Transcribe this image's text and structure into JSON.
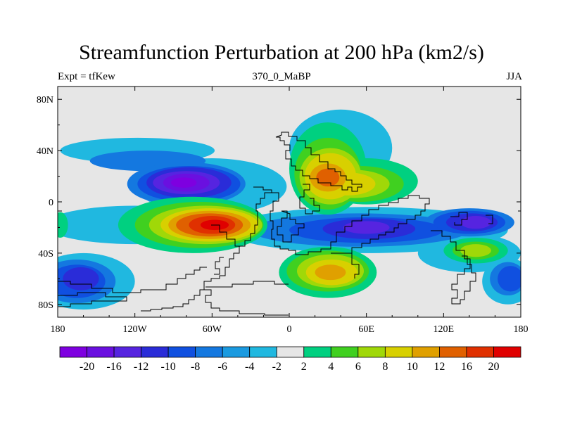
{
  "title": "Streamfunction Perturbation at 200 hPa (km2/s)",
  "left_subtitle": "Expt = tfKew",
  "center_subtitle": "370_0_MaBP",
  "right_subtitle": "JJA",
  "chart_data": {
    "type": "heatmap",
    "title": "Streamfunction Perturbation at 200 hPa (km2/s)",
    "subtitle": "370_0_MaBP",
    "x_ticks": [
      "180",
      "120W",
      "60W",
      "0",
      "60E",
      "120E",
      "180"
    ],
    "x_tick_values": [
      -180,
      -120,
      -60,
      0,
      60,
      120,
      180
    ],
    "y_ticks": [
      "80N",
      "40N",
      "0",
      "40S",
      "80S"
    ],
    "y_tick_values": [
      80,
      40,
      0,
      -40,
      -80
    ],
    "xlim": [
      -180,
      180
    ],
    "ylim": [
      -90,
      90
    ],
    "units": "km2/s",
    "colorbar": {
      "boundaries": [
        "-20",
        "-16",
        "-12",
        "-10",
        "-8",
        "-6",
        "-4",
        "-2",
        "2",
        "4",
        "6",
        "8",
        "10",
        "12",
        "16",
        "20"
      ],
      "colors": [
        "#7e00e0",
        "#6a10e0",
        "#5624e0",
        "#2a2cd8",
        "#1050e0",
        "#1478e0",
        "#1a9ae0",
        "#20b8e0",
        "#e6e6e6",
        "#00d080",
        "#40d020",
        "#a0d808",
        "#d8d000",
        "#e0a000",
        "#e06000",
        "#e03000",
        "#e00000"
      ]
    },
    "features": [
      {
        "name": "positive max",
        "lon": -60,
        "lat": -18,
        "value": 20
      },
      {
        "name": "positive center",
        "lon": 30,
        "lat": 18,
        "value": 16
      },
      {
        "name": "positive center",
        "lon": 30,
        "lat": -55,
        "value": 12
      },
      {
        "name": "positive center",
        "lon": 145,
        "lat": -38,
        "value": 8
      },
      {
        "name": "negative min",
        "lon": -80,
        "lat": 15,
        "value": -20
      },
      {
        "name": "negative center",
        "lon": 60,
        "lat": -20,
        "value": -12
      },
      {
        "name": "negative center",
        "lon": 140,
        "lat": -15,
        "value": -12
      },
      {
        "name": "negative center",
        "lon": -160,
        "lat": -55,
        "value": -10
      },
      {
        "name": "negative center",
        "lon": 165,
        "lat": -60,
        "value": -10
      }
    ]
  }
}
